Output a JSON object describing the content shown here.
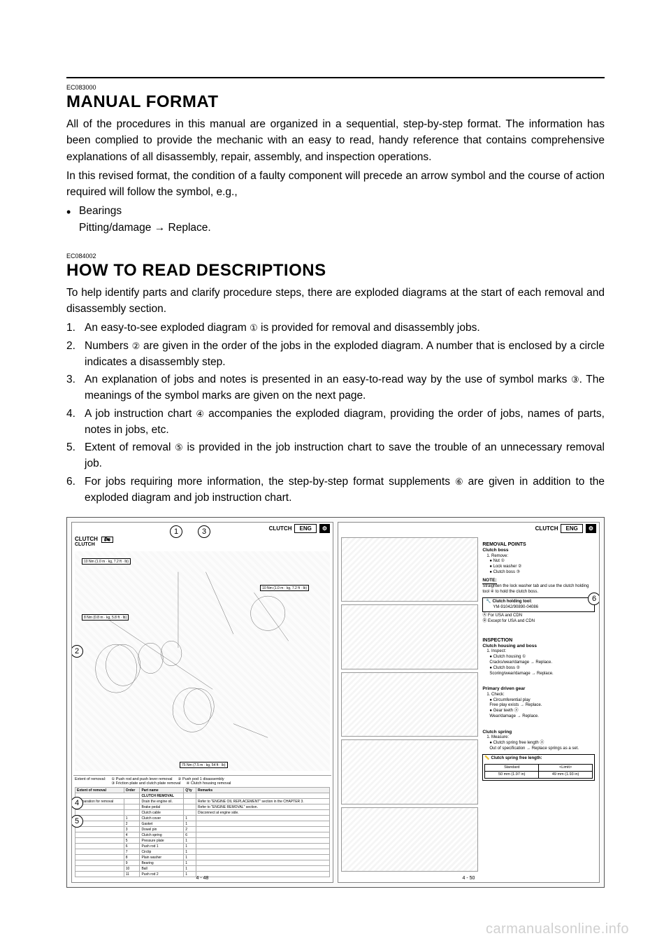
{
  "section1": {
    "code": "EC083000",
    "title": "MANUAL FORMAT",
    "para1": "All of the procedures in this manual are organized in a sequential, step-by-step format. The information has been complied to provide the mechanic with an easy to read, handy reference that contains comprehensive explanations of all disassembly, repair, assembly, and inspection operations.",
    "para2": "In this revised format, the condition of a faulty component will precede an arrow symbol and the course of action required will follow the symbol, e.g.,",
    "bullet1": "Bearings",
    "bullet1_sub": "Pitting/damage → Replace."
  },
  "section2": {
    "code": "EC084002",
    "title": "HOW TO READ DESCRIPTIONS",
    "para1": "To help identify parts and clarify procedure steps, there are exploded diagrams at the start of each removal and disassembly section.",
    "items": [
      {
        "n": "1.",
        "text_pre": "An easy-to-see exploded diagram ",
        "circ": "①",
        "text_post": " is provided for removal and disassembly jobs."
      },
      {
        "n": "2.",
        "text_pre": "Numbers ",
        "circ": "②",
        "text_post": " are given in the order of the jobs in the exploded diagram. A number that is enclosed by a circle indicates a disassembly step."
      },
      {
        "n": "3.",
        "text_pre": "An explanation of jobs and notes is presented in an easy-to-read way by the use of symbol marks ",
        "circ": "③",
        "text_post": ". The meanings of the symbol marks are given on the next page."
      },
      {
        "n": "4.",
        "text_pre": "A job instruction chart ",
        "circ": "④",
        "text_post": " accompanies the exploded diagram, providing the order of jobs, names of parts, notes in jobs, etc."
      },
      {
        "n": "5.",
        "text_pre": "Extent of removal ",
        "circ": "⑤",
        "text_post": " is provided in the job instruction chart to save the trouble of an unnecessary removal job."
      },
      {
        "n": "6.",
        "text_pre": "For jobs requiring more information, the step-by-step format supplements ",
        "circ": "⑥",
        "text_post": " are given in addition to the exploded diagram and job instruction chart."
      }
    ]
  },
  "diagram": {
    "callouts": [
      "1",
      "2",
      "3",
      "4",
      "5",
      "6"
    ],
    "left_page": {
      "title_top": "CLUTCH",
      "sub": "CLUTCH",
      "header_clutch": "CLUTCH",
      "eng": "ENG",
      "torque1": "10 Nm (1.0 m · kg, 7.2 ft · lb)",
      "torque2": "8 Nm (0.8 m · kg, 5.8 ft · lb)",
      "torque3": "10 Nm (1.0 m · kg, 7.2 ft · lb)",
      "torque4": "75 Nm (7.5 m · kg, 54 ft · lb)",
      "extent_label": "Extent of removal:",
      "extent_desc1": "① Push rod and push lever removal",
      "extent_desc2": "② Push pod 1 disassembly",
      "extent_desc3": "③ Friction plate and clutch plate removal",
      "extent_desc4": "④ Clutch housing removal",
      "table_headers": [
        "Extent of removal",
        "Order",
        "Part name",
        "Q'ty",
        "Remarks"
      ],
      "table_section": "CLUTCH REMOVAL",
      "prep_label": "Preparation for removal",
      "prep_rows": [
        {
          "name": "Drain the engine oil.",
          "remark": "Refer to \"ENGINE OIL REPLACEMENT\" section in the CHAPTER 3."
        },
        {
          "name": "Brake pedal",
          "remark": "Refer to \"ENGINE REMOVAL\" section."
        },
        {
          "name": "Clutch cable",
          "remark": "Disconnect at engine side."
        }
      ],
      "rows": [
        {
          "order": "1",
          "name": "Clutch cover",
          "qty": "1"
        },
        {
          "order": "2",
          "name": "Gasket",
          "qty": "1"
        },
        {
          "order": "3",
          "name": "Dowel pin",
          "qty": "2"
        },
        {
          "order": "4",
          "name": "Clutch spring",
          "qty": "6"
        },
        {
          "order": "5",
          "name": "Pressure plate",
          "qty": "1"
        },
        {
          "order": "6",
          "name": "Push rod 1",
          "qty": "1"
        },
        {
          "order": "7",
          "name": "Circlip",
          "qty": "1"
        },
        {
          "order": "8",
          "name": "Plain washer",
          "qty": "1"
        },
        {
          "order": "9",
          "name": "Bearing",
          "qty": "1"
        },
        {
          "order": "10",
          "name": "Ball",
          "qty": "1"
        },
        {
          "order": "11",
          "name": "Push rod 2",
          "qty": "1"
        }
      ],
      "page_num": "4 - 48"
    },
    "right_page": {
      "header_clutch": "CLUTCH",
      "eng": "ENG",
      "removal_heading": "REMOVAL POINTS",
      "clutch_boss_h": "Clutch boss",
      "remove_label": "1.  Remove:",
      "remove_items": [
        "● Nut ①",
        "● Lock washer ②",
        "● Clutch boss ③"
      ],
      "note_label": "NOTE:",
      "note_text": "Straighten the lock washer tab and use the clutch holding tool ④ to hold the clutch boss.",
      "tool_label": "Clutch holding tool:",
      "tool_num": "YM-91042/90890-04086",
      "region_a": "Ⓐ For USA and CDN",
      "region_b": "Ⓑ Except for USA and CDN",
      "inspection_h": "INSPECTION",
      "housing_h": "Clutch housing and boss",
      "inspect_label": "1.  Inspect:",
      "inspect_items": [
        "● Clutch housing ①",
        "  Cracks/wear/damage → Replace.",
        "● Clutch boss ②",
        "  Scoring/wear/damage → Replace."
      ],
      "primary_h": "Primary driven gear",
      "check_label": "1.  Check:",
      "check_items": [
        "● Circumferential play",
        "  Free play exists → Replace.",
        "● Gear teeth ⓐ",
        "  Wear/damage → Replace."
      ],
      "spring_h": "Clutch spring",
      "measure_label": "1.  Measure:",
      "measure_items": [
        "● Clutch spring free length ⓐ",
        "  Out of specification → Replace springs as a set."
      ],
      "spring_spec_label": "Clutch spring free length:",
      "spec_std_h": "Standard",
      "spec_lim_h": "<Limit>",
      "spec_std": "50 mm (1.97 in)",
      "spec_lim": "49 mm (1.93 in)",
      "page_num": "4 - 50"
    }
  },
  "watermark": "carmanualsonline.info"
}
